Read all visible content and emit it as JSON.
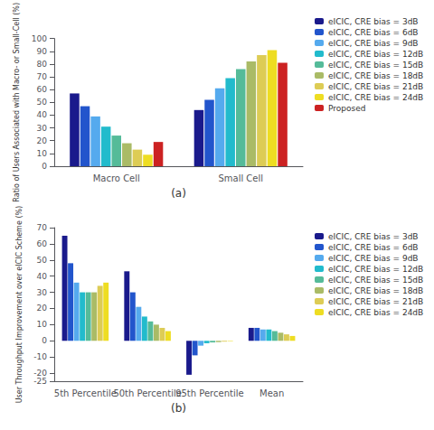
{
  "chart_data": [
    {
      "type": "bar",
      "categories": [
        "Macro Cell",
        "Small Cell"
      ],
      "series": [
        {
          "name": "eICIC, CRE bias = 3dB",
          "color": "#1a1a8c",
          "values": [
            57,
            44
          ]
        },
        {
          "name": "eICIC, CRE bias = 6dB",
          "color": "#2255cc",
          "values": [
            47,
            52
          ]
        },
        {
          "name": "eICIC, CRE bias = 9dB",
          "color": "#55aaee",
          "values": [
            39,
            61
          ]
        },
        {
          "name": "eICIC, CRE bias = 12dB",
          "color": "#22bbcc",
          "values": [
            31,
            69
          ]
        },
        {
          "name": "eICIC, CRE bias = 15dB",
          "color": "#55bb99",
          "values": [
            24,
            76
          ]
        },
        {
          "name": "eICIC, CRE bias = 18dB",
          "color": "#aabb66",
          "values": [
            18,
            82
          ]
        },
        {
          "name": "eICIC, CRE bias = 21dB",
          "color": "#ddcc55",
          "values": [
            13,
            87
          ]
        },
        {
          "name": "eICIC, CRE bias = 24dB",
          "color": "#eedd22",
          "values": [
            9,
            91
          ]
        },
        {
          "name": "Proposed",
          "color": "#cc2222",
          "values": [
            19,
            81
          ]
        }
      ],
      "xlabel": "(a)",
      "ylabel": "Ratio of Users Associated with Macro- or Small-Cell (%)",
      "ylim": [
        0,
        100
      ],
      "yticks": [
        0,
        10,
        20,
        30,
        40,
        50,
        60,
        70,
        80,
        90,
        100
      ],
      "grid": false,
      "legend": "upper right"
    },
    {
      "type": "bar",
      "categories": [
        "5th Percentile",
        "50th Percentile",
        "95th Percentile",
        "Mean"
      ],
      "series": [
        {
          "name": "eICIC, CRE bias = 3dB",
          "color": "#1a1a8c",
          "values": [
            65,
            43,
            -21,
            8
          ]
        },
        {
          "name": "eICIC, CRE bias = 6dB",
          "color": "#2255cc",
          "values": [
            48,
            30,
            -9,
            8
          ]
        },
        {
          "name": "eICIC, CRE bias = 9dB",
          "color": "#55aaee",
          "values": [
            36,
            21,
            -3,
            7
          ]
        },
        {
          "name": "eICIC, CRE bias = 12dB",
          "color": "#22bbcc",
          "values": [
            30,
            15,
            -1.5,
            7
          ]
        },
        {
          "name": "eICIC, CRE bias = 15dB",
          "color": "#55bb99",
          "values": [
            30,
            12,
            -1,
            6
          ]
        },
        {
          "name": "eICIC, CRE bias = 18dB",
          "color": "#aabb66",
          "values": [
            30,
            10,
            -0.8,
            5
          ]
        },
        {
          "name": "eICIC, CRE bias = 21dB",
          "color": "#ddcc55",
          "values": [
            34,
            8,
            -0.5,
            4
          ]
        },
        {
          "name": "eICIC, CRE bias = 24dB",
          "color": "#eedd22",
          "values": [
            36,
            6,
            -0.3,
            3
          ]
        }
      ],
      "xlabel": "(b)",
      "ylabel": "User Throughput Improvement over eICIC Scheme (%)",
      "ylim": [
        -25,
        70
      ],
      "yticks": [
        -25,
        -20,
        -10,
        0,
        10,
        20,
        30,
        40,
        50,
        60,
        70
      ],
      "grid": false,
      "legend": "upper right"
    }
  ]
}
